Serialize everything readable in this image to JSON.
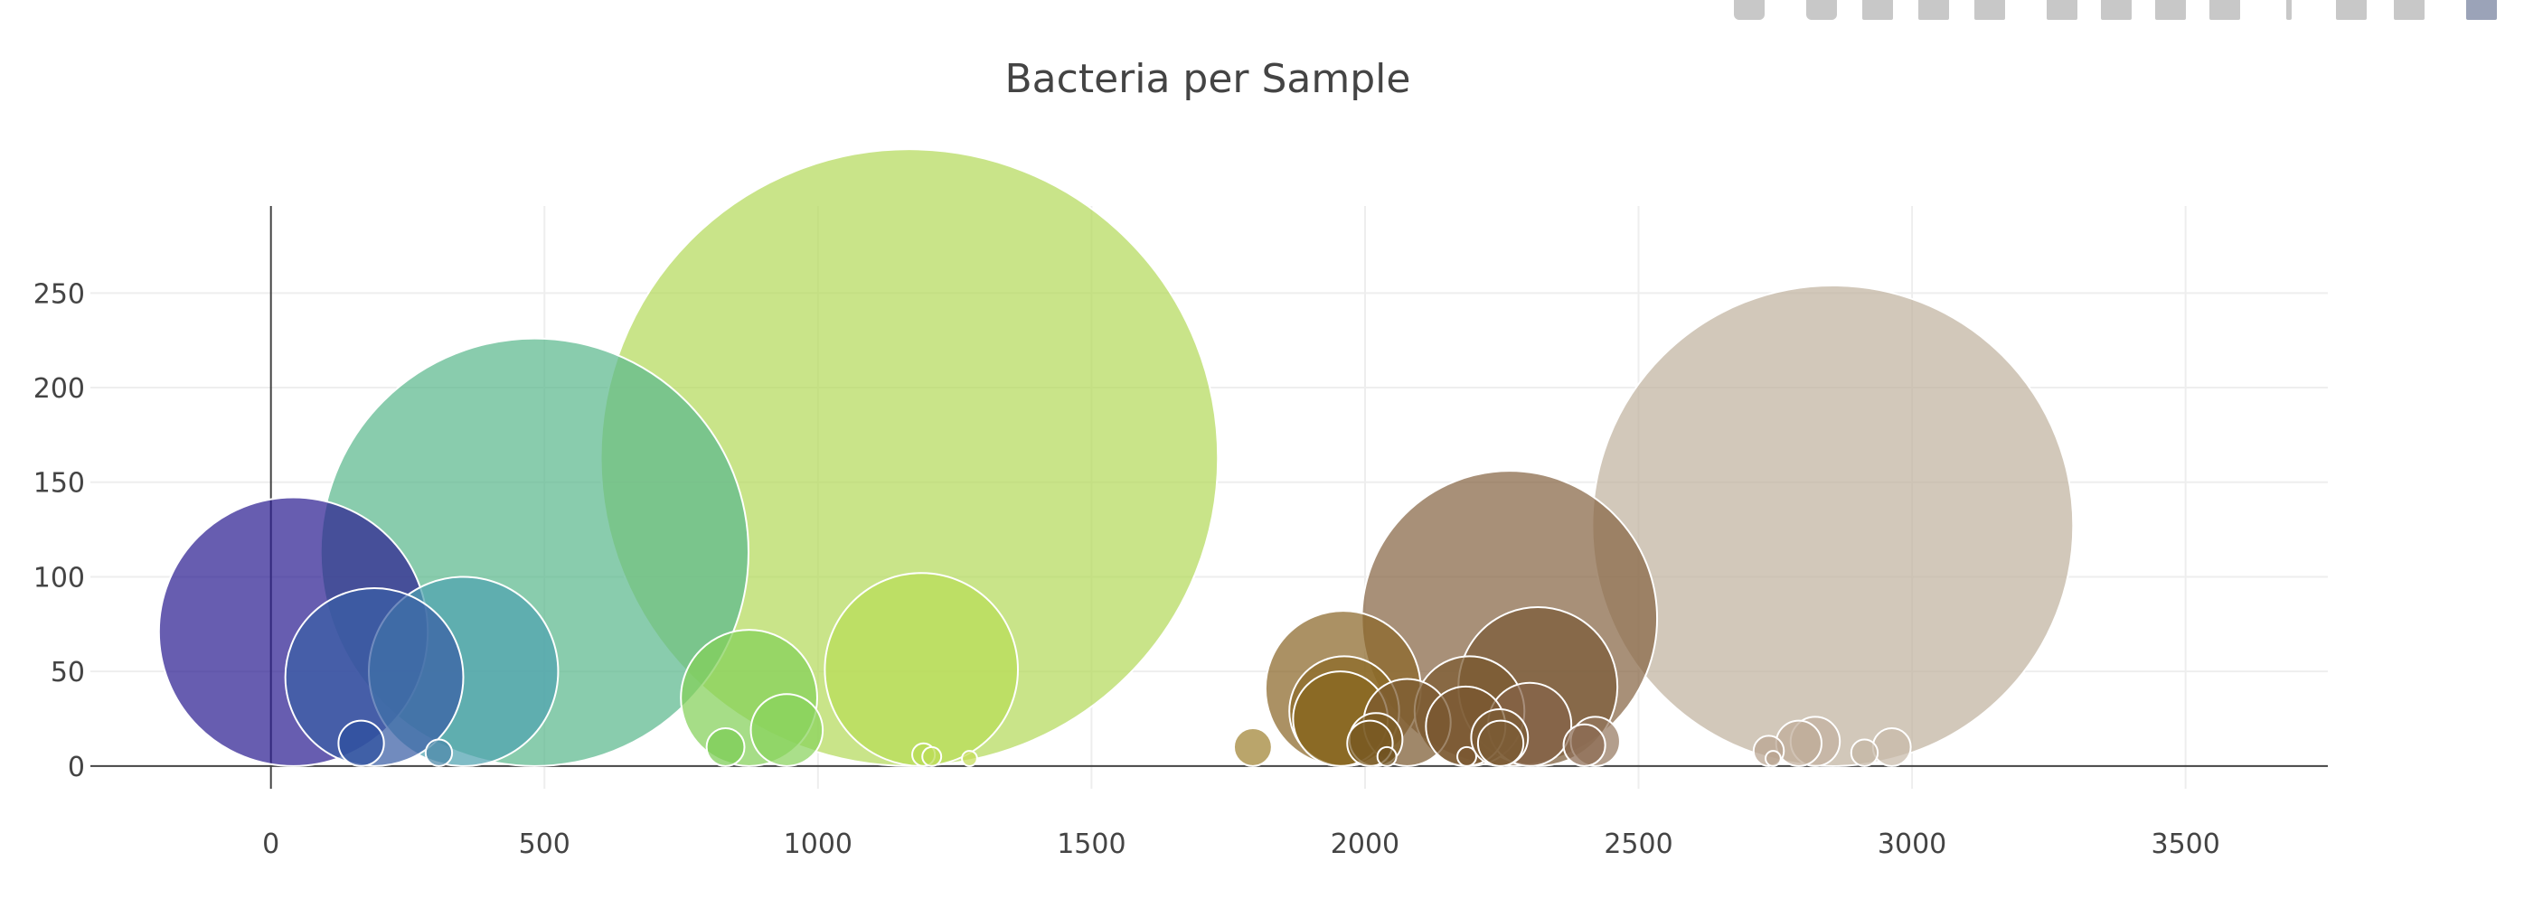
{
  "modebar": {
    "buttons": [
      {
        "name": "camera-icon",
        "active": false
      },
      {
        "name": "zoom-icon",
        "active": false
      },
      {
        "name": "pan-icon",
        "active": false
      },
      {
        "name": "box-select-icon",
        "active": false
      },
      {
        "name": "lasso-select-icon",
        "active": false
      },
      {
        "name": "zoom-in-icon",
        "active": false
      },
      {
        "name": "zoom-out-icon",
        "active": false
      },
      {
        "name": "autoscale-icon",
        "active": false
      },
      {
        "name": "reset-axes-icon",
        "active": false
      },
      {
        "name": "spike-lines-icon",
        "active": false
      },
      {
        "name": "hover-closest-icon",
        "active": false
      },
      {
        "name": "hover-compare-icon",
        "active": false
      },
      {
        "name": "plotly-logo-icon",
        "active": true
      }
    ]
  },
  "chart_data": {
    "type": "scatter",
    "subtype": "bubble",
    "title": "Bacteria per Sample",
    "xlabel": "",
    "ylabel": "",
    "xlim": [
      -330,
      3760
    ],
    "ylim": [
      -12,
      296
    ],
    "xticks": [
      0,
      500,
      1000,
      1500,
      2000,
      2500,
      3000,
      3500
    ],
    "yticks": [
      0,
      50,
      100,
      150,
      200,
      250
    ],
    "grid": true,
    "legend": "none",
    "colorscale": "Earth",
    "points": [
      {
        "x": 41,
        "y": 71,
        "size": 71,
        "color": "#2c1f92"
      },
      {
        "x": 165,
        "y": 12,
        "size": 12,
        "color": "#2e4f9e"
      },
      {
        "x": 189,
        "y": 47,
        "size": 47,
        "color": "#3a5ea5"
      },
      {
        "x": 307,
        "y": 7,
        "size": 7,
        "color": "#4a86a8"
      },
      {
        "x": 352,
        "y": 50,
        "size": 50,
        "color": "#4fa2b0"
      },
      {
        "x": 482,
        "y": 113,
        "size": 113,
        "color": "#5cb88e"
      },
      {
        "x": 831,
        "y": 10,
        "size": 10,
        "color": "#7bcc55"
      },
      {
        "x": 874,
        "y": 36,
        "size": 36,
        "color": "#84d059"
      },
      {
        "x": 943,
        "y": 19,
        "size": 19,
        "color": "#89d25d"
      },
      {
        "x": 1167,
        "y": 163,
        "size": 163,
        "color": "#b4da5c"
      },
      {
        "x": 1189,
        "y": 51,
        "size": 51,
        "color": "#b8dc58"
      },
      {
        "x": 1193,
        "y": 6,
        "size": 6,
        "color": "#b9dc58"
      },
      {
        "x": 1208,
        "y": 5,
        "size": 5,
        "color": "#bcdc58"
      },
      {
        "x": 1277,
        "y": 4,
        "size": 4,
        "color": "#c5dc58"
      },
      {
        "x": 1795,
        "y": 10,
        "size": 10,
        "color": "#9f8232"
      },
      {
        "x": 1960,
        "y": 41,
        "size": 41,
        "color": "#8a6728"
      },
      {
        "x": 1962,
        "y": 29,
        "size": 29,
        "color": "#8a6a26"
      },
      {
        "x": 1955,
        "y": 25,
        "size": 25,
        "color": "#88671f"
      },
      {
        "x": 2009,
        "y": 12,
        "size": 12,
        "color": "#7a5a22"
      },
      {
        "x": 2020,
        "y": 14,
        "size": 14,
        "color": "#7a5a22"
      },
      {
        "x": 2040,
        "y": 5,
        "size": 5,
        "color": "#6e5020"
      },
      {
        "x": 2077,
        "y": 23,
        "size": 23,
        "color": "#7b5a30"
      },
      {
        "x": 2184,
        "y": 21,
        "size": 21,
        "color": "#7a5830"
      },
      {
        "x": 2191,
        "y": 29,
        "size": 29,
        "color": "#7b5a30"
      },
      {
        "x": 2186,
        "y": 5,
        "size": 5,
        "color": "#7a5830"
      },
      {
        "x": 2246,
        "y": 15,
        "size": 15,
        "color": "#7c5c34"
      },
      {
        "x": 2248,
        "y": 12,
        "size": 12,
        "color": "#7c5c34"
      },
      {
        "x": 2264,
        "y": 78,
        "size": 78,
        "color": "#876544"
      },
      {
        "x": 2301,
        "y": 22,
        "size": 22,
        "color": "#86644a"
      },
      {
        "x": 2316,
        "y": 42,
        "size": 42,
        "color": "#7a5a38"
      },
      {
        "x": 2401,
        "y": 11,
        "size": 11,
        "color": "#8a6a50"
      },
      {
        "x": 2421,
        "y": 13,
        "size": 13,
        "color": "#957860"
      },
      {
        "x": 2738,
        "y": 8,
        "size": 8,
        "color": "#b9a390"
      },
      {
        "x": 2746,
        "y": 4,
        "size": 4,
        "color": "#b9a390"
      },
      {
        "x": 2793,
        "y": 12,
        "size": 12,
        "color": "#bfac98"
      },
      {
        "x": 2823,
        "y": 13,
        "size": 13,
        "color": "#c2b09f"
      },
      {
        "x": 2855,
        "y": 127,
        "size": 127,
        "color": "#c1b3a0"
      },
      {
        "x": 2913,
        "y": 7,
        "size": 7,
        "color": "#c3b5a4"
      },
      {
        "x": 2963,
        "y": 10,
        "size": 10,
        "color": "#c7baa9"
      }
    ]
  }
}
